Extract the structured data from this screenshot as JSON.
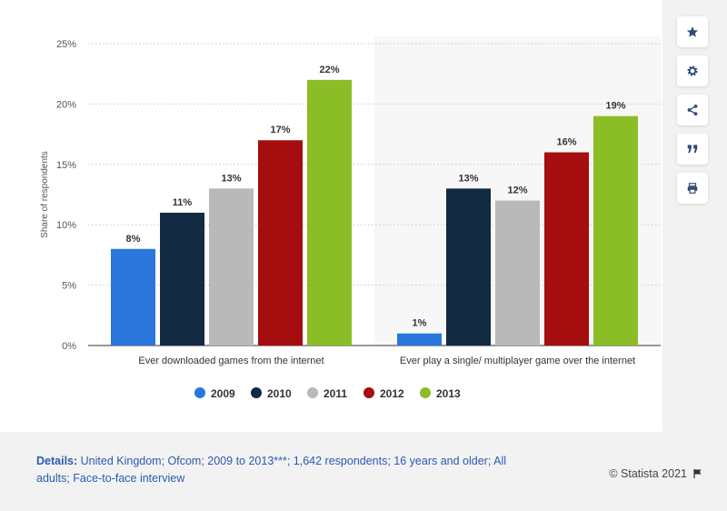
{
  "chart_data": {
    "type": "bar",
    "categories": [
      "Ever downloaded games from the internet",
      "Ever play a single/ multiplayer game over the internet"
    ],
    "series": [
      {
        "name": "2009",
        "color": "#2a76dd",
        "values": [
          8,
          1
        ]
      },
      {
        "name": "2010",
        "color": "#132a43",
        "values": [
          11,
          13
        ]
      },
      {
        "name": "2011",
        "color": "#b9b9b9",
        "values": [
          13,
          12
        ]
      },
      {
        "name": "2012",
        "color": "#a50d0f",
        "values": [
          17,
          16
        ]
      },
      {
        "name": "2013",
        "color": "#8bbd26",
        "values": [
          22,
          19
        ]
      }
    ],
    "value_labels": [
      [
        "8%",
        "1%"
      ],
      [
        "11%",
        "13%"
      ],
      [
        "13%",
        "12%"
      ],
      [
        "17%",
        "16%"
      ],
      [
        "22%",
        "19%"
      ]
    ],
    "ylabel": "Share of respondents",
    "ylim": [
      0,
      25
    ],
    "yticks": [
      0,
      5,
      10,
      15,
      20,
      25
    ],
    "ytick_labels": [
      "0%",
      "5%",
      "10%",
      "15%",
      "20%",
      "25%"
    ],
    "grid": true,
    "legend_position": "bottom-center"
  },
  "toolbar": {
    "icons": [
      "star-icon",
      "gear-icon",
      "share-icon",
      "quote-icon",
      "print-icon"
    ]
  },
  "footer": {
    "details_label": "Details:",
    "details_text": "United Kingdom; Ofcom; 2009 to 2013***; 1,642 respondents; 16 years and older; All adults; Face-to-face interview",
    "copyright": "© Statista 2021"
  }
}
